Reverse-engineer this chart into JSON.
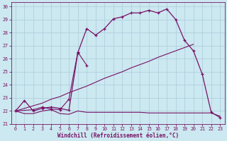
{
  "xlabel": "Windchill (Refroidissement éolien,°C)",
  "bg_color": "#cce8f0",
  "grid_color": "#aaccdd",
  "line_color": "#771166",
  "xlim": [
    -0.5,
    23.5
  ],
  "ylim": [
    21,
    30.3
  ],
  "xticks": [
    0,
    1,
    2,
    3,
    4,
    5,
    6,
    7,
    8,
    9,
    10,
    11,
    12,
    13,
    14,
    15,
    16,
    17,
    18,
    19,
    20,
    21,
    22,
    23
  ],
  "yticks": [
    21,
    22,
    23,
    24,
    25,
    26,
    27,
    28,
    29,
    30
  ],
  "series1_x": [
    0,
    1,
    2,
    3,
    4,
    5,
    6,
    7,
    8,
    9,
    10,
    11,
    12,
    13,
    14,
    15,
    16,
    17,
    18,
    19,
    20,
    21,
    22,
    23
  ],
  "series1_y": [
    22.0,
    21.8,
    21.8,
    22.0,
    22.1,
    21.8,
    21.75,
    22.0,
    21.9,
    21.9,
    21.9,
    21.9,
    21.9,
    21.9,
    21.9,
    21.85,
    21.85,
    21.85,
    21.85,
    21.85,
    21.85,
    21.85,
    21.85,
    21.6
  ],
  "series2_x": [
    0,
    1,
    2,
    3,
    4,
    5,
    6,
    7,
    8,
    9,
    10,
    11,
    12,
    13,
    14,
    15,
    16,
    17,
    18,
    19,
    20
  ],
  "series2_y": [
    22.0,
    22.2,
    22.4,
    22.6,
    22.9,
    23.1,
    23.4,
    23.65,
    23.9,
    24.2,
    24.5,
    24.75,
    25.0,
    25.3,
    25.55,
    25.8,
    26.1,
    26.35,
    26.6,
    26.85,
    27.1
  ],
  "series3_x": [
    0,
    2,
    3,
    4,
    5,
    6,
    7,
    8
  ],
  "series3_y": [
    22.0,
    22.1,
    22.3,
    22.15,
    22.1,
    22.9,
    26.5,
    25.5
  ],
  "series4_x": [
    0,
    1,
    2,
    3,
    4,
    5,
    6,
    7,
    8,
    9,
    10,
    11,
    12,
    13,
    14,
    15,
    16,
    17,
    18,
    19,
    20,
    21,
    22,
    23
  ],
  "series4_y": [
    22.0,
    22.8,
    22.0,
    22.2,
    22.3,
    22.2,
    22.05,
    26.45,
    28.3,
    27.8,
    28.3,
    29.05,
    29.2,
    29.5,
    29.5,
    29.7,
    29.5,
    29.8,
    29.0,
    27.4,
    26.6,
    24.8,
    21.9,
    21.5
  ]
}
